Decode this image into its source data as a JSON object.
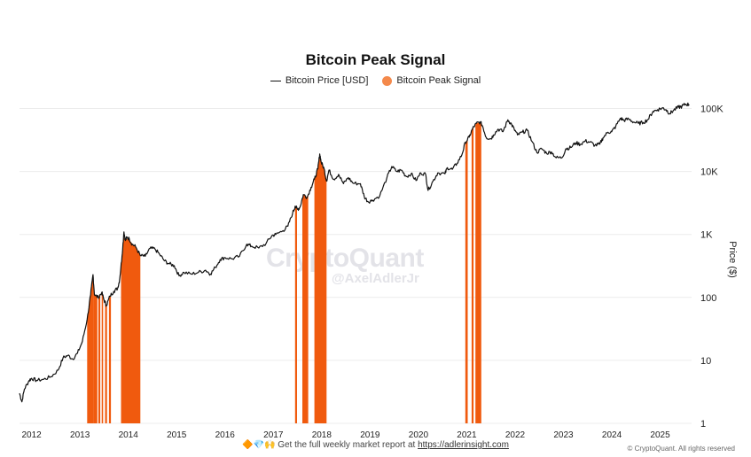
{
  "chart_data": {
    "type": "line",
    "title": "Bitcoin Peak Signal",
    "legend": [
      {
        "name": "Bitcoin Price [USD]",
        "kind": "line",
        "color": "#111111"
      },
      {
        "name": "Bitcoin Peak Signal",
        "kind": "bar",
        "color": "#f4894b"
      }
    ],
    "ylabel": "Price ($)",
    "yscale": "log",
    "ylim": [
      1,
      150000
    ],
    "xlim": [
      2011.75,
      2025.65
    ],
    "x_ticks": [
      "2012",
      "2013",
      "2014",
      "2015",
      "2016",
      "2017",
      "2018",
      "2019",
      "2020",
      "2021",
      "2022",
      "2023",
      "2024",
      "2025"
    ],
    "y_ticks": [
      {
        "value": 100000,
        "label": "100K"
      },
      {
        "value": 10000,
        "label": "10K"
      },
      {
        "value": 1000,
        "label": "1K"
      },
      {
        "value": 100,
        "label": "100"
      },
      {
        "value": 10,
        "label": "10"
      },
      {
        "value": 1,
        "label": "1"
      }
    ],
    "series": [
      {
        "name": "Bitcoin Price [USD]",
        "points": [
          [
            2011.75,
            3
          ],
          [
            2011.8,
            2.2
          ],
          [
            2011.85,
            3.5
          ],
          [
            2011.95,
            4.8
          ],
          [
            2012.0,
            5.2
          ],
          [
            2012.1,
            4.8
          ],
          [
            2012.25,
            5
          ],
          [
            2012.4,
            5.5
          ],
          [
            2012.55,
            7
          ],
          [
            2012.65,
            11
          ],
          [
            2012.75,
            12
          ],
          [
            2012.85,
            10.5
          ],
          [
            2012.95,
            13
          ],
          [
            2013.05,
            20
          ],
          [
            2013.15,
            45
          ],
          [
            2013.22,
            110
          ],
          [
            2013.27,
            230
          ],
          [
            2013.3,
            110
          ],
          [
            2013.38,
            100
          ],
          [
            2013.45,
            120
          ],
          [
            2013.5,
            90
          ],
          [
            2013.55,
            75
          ],
          [
            2013.62,
            105
          ],
          [
            2013.7,
            125
          ],
          [
            2013.78,
            140
          ],
          [
            2013.82,
            190
          ],
          [
            2013.87,
            450
          ],
          [
            2013.91,
            1100
          ],
          [
            2013.94,
            800
          ],
          [
            2013.97,
            900
          ],
          [
            2014.02,
            850
          ],
          [
            2014.08,
            700
          ],
          [
            2014.15,
            640
          ],
          [
            2014.25,
            460
          ],
          [
            2014.35,
            450
          ],
          [
            2014.45,
            600
          ],
          [
            2014.55,
            590
          ],
          [
            2014.65,
            480
          ],
          [
            2014.75,
            380
          ],
          [
            2014.85,
            340
          ],
          [
            2014.95,
            320
          ],
          [
            2015.05,
            220
          ],
          [
            2015.15,
            250
          ],
          [
            2015.3,
            235
          ],
          [
            2015.45,
            250
          ],
          [
            2015.6,
            270
          ],
          [
            2015.7,
            235
          ],
          [
            2015.8,
            300
          ],
          [
            2015.9,
            400
          ],
          [
            2016.0,
            430
          ],
          [
            2016.15,
            410
          ],
          [
            2016.3,
            450
          ],
          [
            2016.45,
            700
          ],
          [
            2016.55,
            650
          ],
          [
            2016.7,
            610
          ],
          [
            2016.85,
            720
          ],
          [
            2016.97,
            960
          ],
          [
            2017.05,
            1000
          ],
          [
            2017.2,
            1150
          ],
          [
            2017.3,
            1350
          ],
          [
            2017.4,
            2200
          ],
          [
            2017.45,
            2800
          ],
          [
            2017.5,
            2500
          ],
          [
            2017.55,
            2700
          ],
          [
            2017.62,
            4300
          ],
          [
            2017.7,
            3900
          ],
          [
            2017.78,
            5600
          ],
          [
            2017.85,
            7500
          ],
          [
            2017.92,
            11000
          ],
          [
            2017.96,
            19000
          ],
          [
            2017.99,
            14000
          ],
          [
            2018.05,
            11000
          ],
          [
            2018.1,
            7000
          ],
          [
            2018.15,
            10500
          ],
          [
            2018.25,
            7500
          ],
          [
            2018.35,
            9000
          ],
          [
            2018.45,
            6400
          ],
          [
            2018.55,
            8000
          ],
          [
            2018.65,
            6500
          ],
          [
            2018.8,
            6400
          ],
          [
            2018.88,
            4000
          ],
          [
            2018.96,
            3300
          ],
          [
            2019.05,
            3500
          ],
          [
            2019.2,
            4100
          ],
          [
            2019.35,
            8000
          ],
          [
            2019.45,
            12000
          ],
          [
            2019.55,
            10000
          ],
          [
            2019.65,
            10500
          ],
          [
            2019.75,
            8300
          ],
          [
            2019.85,
            9200
          ],
          [
            2019.95,
            7200
          ],
          [
            2020.05,
            9500
          ],
          [
            2020.15,
            9000
          ],
          [
            2020.2,
            5000
          ],
          [
            2020.3,
            7000
          ],
          [
            2020.4,
            9500
          ],
          [
            2020.55,
            9200
          ],
          [
            2020.6,
            11500
          ],
          [
            2020.7,
            10800
          ],
          [
            2020.8,
            13500
          ],
          [
            2020.9,
            18500
          ],
          [
            2020.97,
            29000
          ],
          [
            2021.05,
            35000
          ],
          [
            2021.12,
            48000
          ],
          [
            2021.2,
            58000
          ],
          [
            2021.28,
            61000
          ],
          [
            2021.33,
            52000
          ],
          [
            2021.4,
            35000
          ],
          [
            2021.5,
            33000
          ],
          [
            2021.55,
            38000
          ],
          [
            2021.65,
            47000
          ],
          [
            2021.75,
            43000
          ],
          [
            2021.85,
            66000
          ],
          [
            2021.92,
            57000
          ],
          [
            2021.98,
            47000
          ],
          [
            2022.05,
            38000
          ],
          [
            2022.15,
            42000
          ],
          [
            2022.25,
            45000
          ],
          [
            2022.35,
            30000
          ],
          [
            2022.45,
            20000
          ],
          [
            2022.55,
            23000
          ],
          [
            2022.65,
            19500
          ],
          [
            2022.75,
            20500
          ],
          [
            2022.85,
            16500
          ],
          [
            2022.97,
            16600
          ],
          [
            2023.05,
            23000
          ],
          [
            2023.15,
            24000
          ],
          [
            2023.25,
            28500
          ],
          [
            2023.35,
            27000
          ],
          [
            2023.45,
            30500
          ],
          [
            2023.55,
            29300
          ],
          [
            2023.65,
            26000
          ],
          [
            2023.75,
            27000
          ],
          [
            2023.82,
            34500
          ],
          [
            2023.92,
            42000
          ],
          [
            2024.0,
            43000
          ],
          [
            2024.08,
            52000
          ],
          [
            2024.18,
            70000
          ],
          [
            2024.25,
            65000
          ],
          [
            2024.35,
            68000
          ],
          [
            2024.45,
            61000
          ],
          [
            2024.55,
            58000
          ],
          [
            2024.65,
            60000
          ],
          [
            2024.75,
            67000
          ],
          [
            2024.85,
            90000
          ],
          [
            2024.95,
            96000
          ],
          [
            2025.05,
            102000
          ],
          [
            2025.12,
            96000
          ],
          [
            2025.2,
            83000
          ],
          [
            2025.28,
            94000
          ],
          [
            2025.38,
            105000
          ],
          [
            2025.45,
            108000
          ],
          [
            2025.52,
            117000
          ],
          [
            2025.6,
            116000
          ]
        ]
      },
      {
        "name": "Bitcoin Peak Signal",
        "intervals": [
          [
            2013.15,
            2013.28
          ],
          [
            2013.28,
            2013.36
          ],
          [
            2013.38,
            2013.42
          ],
          [
            2013.45,
            2013.48
          ],
          [
            2013.52,
            2013.56
          ],
          [
            2013.6,
            2013.64
          ],
          [
            2013.85,
            2014.25
          ],
          [
            2017.45,
            2017.49
          ],
          [
            2017.6,
            2017.72
          ],
          [
            2017.85,
            2018.1
          ],
          [
            2020.97,
            2021.02
          ],
          [
            2021.1,
            2021.14
          ],
          [
            2021.18,
            2021.3
          ]
        ]
      }
    ]
  },
  "watermark": {
    "brand": "CryptoQuant",
    "handle": "@AxelAdlerJr"
  },
  "footer": {
    "emoji": "🔶💎🙌",
    "text": "Get the full weekly market report at",
    "link": "https://adlerinsight.com",
    "copyright": "© CryptoQuant. All rights reserved"
  }
}
